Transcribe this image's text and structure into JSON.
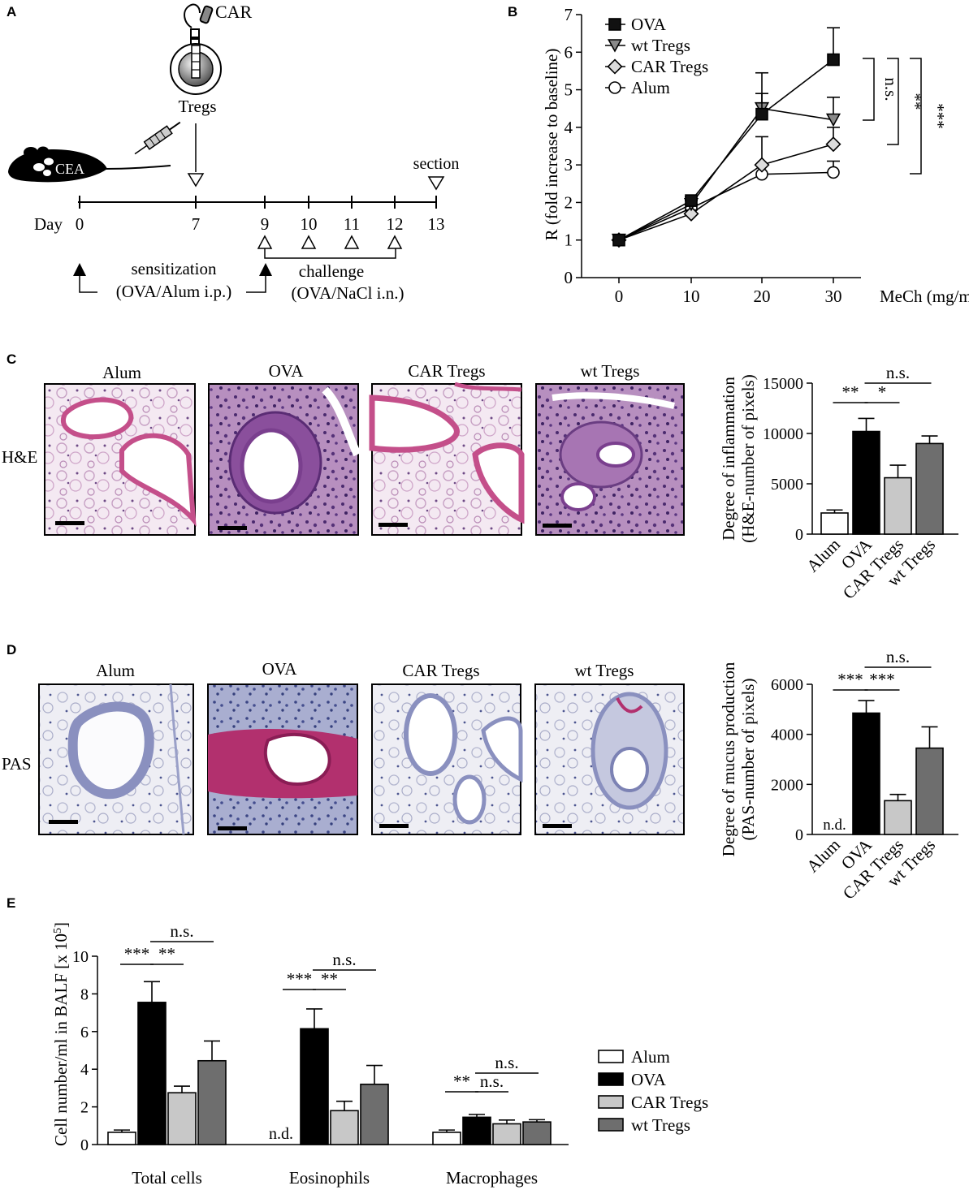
{
  "panels": {
    "a": "A",
    "b": "B",
    "c": "C",
    "d": "D",
    "e": "E"
  },
  "panel_a": {
    "car_label": "CAR",
    "tregs_label": "Tregs",
    "mouse_label": "CEA",
    "day_label": "Day",
    "days": [
      "0",
      "7",
      "9",
      "10",
      "11",
      "12",
      "13"
    ],
    "section_label": "section",
    "sensitization_label": "sensitization",
    "sensitization_detail": "(OVA/Alum i.p.)",
    "challenge_label": "challenge",
    "challenge_detail": "(OVA/NaCl i.n.)"
  },
  "panel_c": {
    "row_label": "H&E",
    "image_titles": [
      "Alum",
      "OVA",
      "CAR Tregs",
      "wt Tregs"
    ]
  },
  "panel_d": {
    "row_label": "PAS",
    "image_titles": [
      "Alum",
      "OVA",
      "CAR Tregs",
      "wt Tregs"
    ]
  },
  "chart_data": [
    {
      "id": "B",
      "type": "line",
      "x": [
        0,
        10,
        20,
        30
      ],
      "xlabel": "MeCh (mg/ml)",
      "ylabel": "R  (fold increase to baseline)",
      "ylim": [
        0,
        7
      ],
      "yticks": [
        "0",
        "1",
        "2",
        "3",
        "4",
        "5",
        "6",
        "7"
      ],
      "xticks": [
        "0",
        "10",
        "20",
        "30"
      ],
      "legend_position": "top-left",
      "series": [
        {
          "name": "OVA",
          "values": [
            1.0,
            2.05,
            4.35,
            5.8
          ],
          "errors": [
            0.05,
            0.1,
            1.1,
            0.85
          ],
          "marker": "square",
          "fill": "#111111"
        },
        {
          "name": "wt Tregs",
          "values": [
            1.0,
            1.95,
            4.5,
            4.2
          ],
          "errors": [
            0.05,
            0.1,
            0.4,
            0.6
          ],
          "marker": "triangle-down",
          "fill": "#8a8a8a"
        },
        {
          "name": "CAR Tregs",
          "values": [
            1.0,
            1.7,
            3.0,
            3.55
          ],
          "errors": [
            0.05,
            0.1,
            0.75,
            0.45
          ],
          "marker": "diamond",
          "fill": "#dcdcdc"
        },
        {
          "name": "Alum",
          "values": [
            1.0,
            1.85,
            2.75,
            2.8
          ],
          "errors": [
            0.05,
            0.1,
            0.25,
            0.3
          ],
          "marker": "circle",
          "fill": "#ffffff"
        }
      ],
      "significance": [
        "n.s.",
        "**",
        "***"
      ]
    },
    {
      "id": "C",
      "type": "bar",
      "categories": [
        "Alum",
        "OVA",
        "CAR Tregs",
        "wt Tregs"
      ],
      "values": [
        2100,
        10200,
        5600,
        9000
      ],
      "errors": [
        300,
        1300,
        1250,
        750
      ],
      "ylabel": "Degree of inflammation",
      "ylabel2": "(H&E-number of pixels)",
      "ylim": [
        0,
        15000
      ],
      "yticks": [
        "0",
        "5000",
        "10000",
        "15000"
      ],
      "colors": [
        "#ffffff",
        "#000000",
        "#c8c8c8",
        "#6e6e6e"
      ],
      "significance": [
        "**",
        "*",
        "n.s."
      ]
    },
    {
      "id": "D",
      "type": "bar",
      "categories": [
        "Alum",
        "OVA",
        "CAR Tregs",
        "wt Tregs"
      ],
      "values": [
        0,
        4850,
        1350,
        3450
      ],
      "errors": [
        0,
        500,
        250,
        850
      ],
      "not_detected": "n.d.",
      "ylabel": "Degree of mucus production",
      "ylabel2": "(PAS-number of pixels)",
      "ylim": [
        0,
        6000
      ],
      "yticks": [
        "0",
        "2000",
        "4000",
        "6000"
      ],
      "colors": [
        "#ffffff",
        "#000000",
        "#c8c8c8",
        "#6e6e6e"
      ],
      "significance": [
        "***",
        "***",
        "n.s."
      ]
    },
    {
      "id": "E",
      "type": "bar",
      "categories": [
        "Total cells",
        "Eosinophils",
        "Macrophages"
      ],
      "ylabel": "Cell number/ml in BALF [x 10",
      "ylabel_sup": "5",
      "ylabel_end": "]",
      "ylim": [
        0,
        10
      ],
      "yticks": [
        "0",
        "2",
        "4",
        "6",
        "8",
        "10"
      ],
      "not_detected": "n.d.",
      "legend_position": "right",
      "series": [
        {
          "name": "Alum",
          "values": [
            0.65,
            0,
            0.65
          ],
          "errors": [
            0.12,
            0,
            0.12
          ],
          "color": "#ffffff"
        },
        {
          "name": "OVA",
          "values": [
            7.55,
            6.15,
            1.45
          ],
          "errors": [
            1.1,
            1.05,
            0.15
          ],
          "color": "#000000"
        },
        {
          "name": "CAR Tregs",
          "values": [
            2.75,
            1.8,
            1.1
          ],
          "errors": [
            0.35,
            0.5,
            0.2
          ],
          "color": "#c8c8c8"
        },
        {
          "name": "wt Tregs",
          "values": [
            4.45,
            3.2,
            1.2
          ],
          "errors": [
            1.05,
            1.0,
            0.12
          ],
          "color": "#6e6e6e"
        }
      ],
      "significance": [
        [
          "***",
          "**",
          "n.s."
        ],
        [
          "***",
          "**",
          "n.s."
        ],
        [
          "**",
          "n.s.",
          "n.s."
        ]
      ]
    }
  ]
}
